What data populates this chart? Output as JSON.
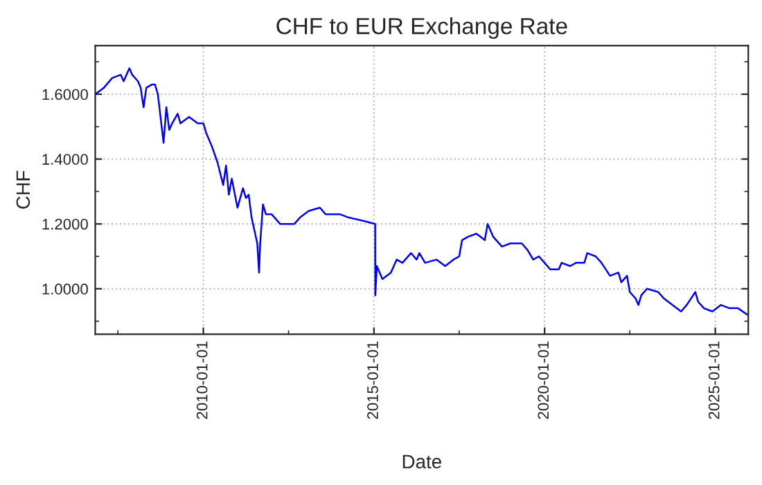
{
  "chart_data": {
    "type": "line",
    "title": "CHF to EUR Exchange Rate",
    "xlabel": "Date",
    "ylabel": "CHF",
    "x": [
      "2006-11",
      "2007-02",
      "2007-05",
      "2007-08",
      "2007-09",
      "2007-11",
      "2007-12",
      "2008-02",
      "2008-03",
      "2008-04",
      "2008-05",
      "2008-07",
      "2008-08",
      "2008-09",
      "2008-11",
      "2008-12",
      "2009-01",
      "2009-02",
      "2009-04",
      "2009-05",
      "2009-08",
      "2009-11",
      "2010-01",
      "2010-02",
      "2010-04",
      "2010-06",
      "2010-08",
      "2010-09",
      "2010-10",
      "2010-11",
      "2011-01",
      "2011-03",
      "2011-04",
      "2011-05",
      "2011-06",
      "2011-08-01",
      "2011-08-20",
      "2011-09",
      "2011-10",
      "2011-11",
      "2012-01",
      "2012-04",
      "2012-09",
      "2012-11",
      "2013-02",
      "2013-06",
      "2013-08",
      "2014-01",
      "2014-04",
      "2014-09",
      "2015-01-14",
      "2015-01-15",
      "2015-02",
      "2015-04",
      "2015-07",
      "2015-09",
      "2015-11",
      "2016-02",
      "2016-04",
      "2016-05",
      "2016-07",
      "2016-11",
      "2017-02",
      "2017-05",
      "2017-07",
      "2017-08",
      "2017-10",
      "2018-01",
      "2018-04",
      "2018-05",
      "2018-07",
      "2018-08",
      "2018-10",
      "2019-01",
      "2019-05",
      "2019-07",
      "2019-09",
      "2019-11",
      "2020-01",
      "2020-03",
      "2020-06",
      "2020-07",
      "2020-10",
      "2020-12",
      "2021-03",
      "2021-04",
      "2021-07",
      "2021-09",
      "2021-12",
      "2022-03",
      "2022-04",
      "2022-06",
      "2022-07",
      "2022-09",
      "2022-10",
      "2022-11",
      "2023-01",
      "2023-05",
      "2023-07",
      "2023-10",
      "2024-01",
      "2024-03",
      "2024-06",
      "2024-07",
      "2024-09",
      "2024-12",
      "2025-03",
      "2025-06",
      "2025-09",
      "2025-12-10"
    ],
    "series": [
      {
        "color": "#0000ff",
        "values": [
          1.6,
          1.62,
          1.65,
          1.66,
          1.64,
          1.68,
          1.66,
          1.64,
          1.62,
          1.56,
          1.62,
          1.63,
          1.63,
          1.6,
          1.45,
          1.56,
          1.49,
          1.51,
          1.54,
          1.51,
          1.53,
          1.51,
          1.51,
          1.48,
          1.44,
          1.39,
          1.32,
          1.38,
          1.29,
          1.34,
          1.25,
          1.31,
          1.28,
          1.29,
          1.22,
          1.14,
          1.05,
          1.14,
          1.26,
          1.23,
          1.23,
          1.2,
          1.2,
          1.22,
          1.24,
          1.25,
          1.23,
          1.23,
          1.22,
          1.21,
          1.2,
          0.98,
          1.07,
          1.03,
          1.05,
          1.09,
          1.08,
          1.11,
          1.09,
          1.11,
          1.08,
          1.09,
          1.07,
          1.09,
          1.1,
          1.15,
          1.16,
          1.17,
          1.15,
          1.2,
          1.16,
          1.15,
          1.13,
          1.14,
          1.14,
          1.12,
          1.09,
          1.1,
          1.08,
          1.06,
          1.06,
          1.08,
          1.07,
          1.08,
          1.08,
          1.11,
          1.1,
          1.08,
          1.04,
          1.05,
          1.02,
          1.04,
          0.99,
          0.97,
          0.95,
          0.98,
          1.0,
          0.99,
          0.97,
          0.95,
          0.93,
          0.95,
          0.99,
          0.96,
          0.94,
          0.93,
          0.95,
          0.94,
          0.94,
          0.92
        ]
      }
    ],
    "xlim": [
      "2006-11-01",
      "2025-12-20"
    ],
    "xticks": [
      {
        "value": "2007-07-01",
        "label": null
      },
      {
        "value": "2010-01-01",
        "label": "2010-01-01"
      },
      {
        "value": "2012-07-01",
        "label": null
      },
      {
        "value": "2015-01-01",
        "label": "2015-01-01"
      },
      {
        "value": "2017-07-01",
        "label": null
      },
      {
        "value": "2020-01-01",
        "label": "2020-01-01"
      },
      {
        "value": "2022-07-01",
        "label": null
      },
      {
        "value": "2025-01-01",
        "label": "2025-01-01"
      }
    ],
    "ylim": [
      0.86,
      1.75
    ],
    "yticks": [
      {
        "value": 0.9,
        "label": null
      },
      {
        "value": 1.0,
        "label": "1.0000"
      },
      {
        "value": 1.1,
        "label": null
      },
      {
        "value": 1.2,
        "label": "1.2000"
      },
      {
        "value": 1.3,
        "label": null
      },
      {
        "value": 1.4,
        "label": "1.4000"
      },
      {
        "value": 1.5,
        "label": null
      },
      {
        "value": 1.6,
        "label": "1.6000"
      },
      {
        "value": 1.7,
        "label": null
      }
    ],
    "grid": true,
    "line_style": "solid"
  }
}
